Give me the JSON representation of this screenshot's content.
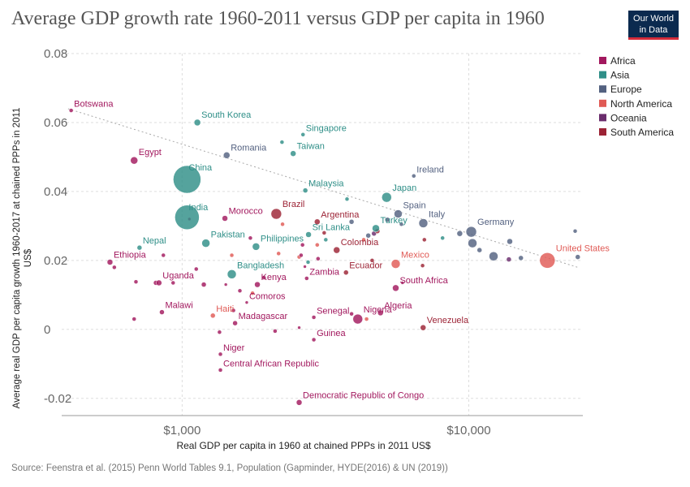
{
  "header": {
    "title": "Average GDP growth rate 1960-2011 versus GDP per capita in 1960",
    "logo_line1": "Our World",
    "logo_line2": "in Data"
  },
  "footer": {
    "source": "Source: Feenstra et al. (2015) Penn World Tables 9.1, Population (Gapminder, HYDE(2016) & UN (2019))"
  },
  "colors": {
    "Africa": "#a2185e",
    "Asia": "#2f8f88",
    "Europe": "#536180",
    "North America": "#e05a55",
    "Oceania": "#6a2d6c",
    "South America": "#9c2335"
  },
  "chart_data": {
    "type": "scatter",
    "title": "Average GDP growth rate 1960-2011 versus GDP per capita in 1960",
    "xlabel": "Real GDP per capita in 1960 at chained PPPs in 2011 US$",
    "ylabel": "Average real GDP per capita growth 1960-2017 at chained PPPs in 2011 US$",
    "x_scale": "log",
    "xlim": [
      380,
      25000
    ],
    "ylim": [
      -0.025,
      0.08
    ],
    "x_ticks": [
      {
        "value": 1000,
        "label": "$1,000"
      },
      {
        "value": 10000,
        "label": "$10,000"
      }
    ],
    "y_ticks": [
      {
        "value": -0.02,
        "label": "-0.02"
      },
      {
        "value": 0,
        "label": "0"
      },
      {
        "value": 0.02,
        "label": "0.02"
      },
      {
        "value": 0.04,
        "label": "0.04"
      },
      {
        "value": 0.06,
        "label": "0.06"
      },
      {
        "value": 0.08,
        "label": "0.08"
      }
    ],
    "grid": true,
    "legend_position": "right",
    "legend": [
      "Africa",
      "Asia",
      "Europe",
      "North America",
      "Oceania",
      "South America"
    ],
    "trendline": [
      {
        "x": 400,
        "y": 0.064
      },
      {
        "x": 24000,
        "y": 0.018
      }
    ],
    "points": [
      {
        "label": "Botswana",
        "region": "Africa",
        "x": 410,
        "y": 0.0635,
        "size": 2.5
      },
      {
        "label": "South Korea",
        "region": "Asia",
        "x": 1130,
        "y": 0.06,
        "size": 4
      },
      {
        "label": "Singapore",
        "region": "Asia",
        "x": 2640,
        "y": 0.0565,
        "size": 2.5
      },
      {
        "label": "Romania",
        "region": "Europe",
        "x": 1430,
        "y": 0.0505,
        "size": 4
      },
      {
        "label": "Taiwan",
        "region": "Asia",
        "x": 2440,
        "y": 0.051,
        "size": 3.5
      },
      {
        "label": "Egypt",
        "region": "Africa",
        "x": 680,
        "y": 0.049,
        "size": 4.5
      },
      {
        "label": "China",
        "region": "Asia",
        "x": 1040,
        "y": 0.0435,
        "size": 17
      },
      {
        "label": "Ireland",
        "region": "Europe",
        "x": 6430,
        "y": 0.0445,
        "size": 2.5
      },
      {
        "label": "Malaysia",
        "region": "Asia",
        "x": 2690,
        "y": 0.0403,
        "size": 3
      },
      {
        "label": "Japan",
        "region": "Asia",
        "x": 5170,
        "y": 0.0383,
        "size": 6
      },
      {
        "label": "India",
        "region": "Asia",
        "x": 1040,
        "y": 0.0325,
        "size": 15
      },
      {
        "label": "Morocco",
        "region": "Africa",
        "x": 1410,
        "y": 0.0322,
        "size": 3.5
      },
      {
        "label": "Brazil",
        "region": "South America",
        "x": 2130,
        "y": 0.0335,
        "size": 6.5
      },
      {
        "label": "Argentina",
        "region": "South America",
        "x": 2960,
        "y": 0.0312,
        "size": 3.5
      },
      {
        "label": "Spain",
        "region": "Europe",
        "x": 5670,
        "y": 0.0335,
        "size": 5
      },
      {
        "label": "Italy",
        "region": "Europe",
        "x": 6940,
        "y": 0.0308,
        "size": 5.5
      },
      {
        "label": "Turkey",
        "region": "Asia",
        "x": 4740,
        "y": 0.0293,
        "size": 4.5
      },
      {
        "label": "Germany",
        "region": "Europe",
        "x": 10200,
        "y": 0.0283,
        "size": 6.5
      },
      {
        "label": "Sri Lanka",
        "region": "Asia",
        "x": 2760,
        "y": 0.0275,
        "size": 3.5
      },
      {
        "label": "Pakistan",
        "region": "Asia",
        "x": 1210,
        "y": 0.025,
        "size": 5
      },
      {
        "label": "Philippines",
        "region": "Asia",
        "x": 1810,
        "y": 0.024,
        "size": 4.5
      },
      {
        "label": "Nepal",
        "region": "Asia",
        "x": 710,
        "y": 0.0237,
        "size": 3
      },
      {
        "label": "Colombia",
        "region": "South America",
        "x": 3460,
        "y": 0.023,
        "size": 4
      },
      {
        "label": "United States",
        "region": "North America",
        "x": 18800,
        "y": 0.02,
        "size": 9.5
      },
      {
        "label": "Ethiopia",
        "region": "Africa",
        "x": 560,
        "y": 0.0195,
        "size": 3.5
      },
      {
        "label": "Mexico",
        "region": "North America",
        "x": 5560,
        "y": 0.019,
        "size": 5.5
      },
      {
        "label": "Bangladesh",
        "region": "Asia",
        "x": 1490,
        "y": 0.016,
        "size": 5.5
      },
      {
        "label": "Ecuador",
        "region": "South America",
        "x": 3730,
        "y": 0.0165,
        "size": 3
      },
      {
        "label": "Zambia",
        "region": "Africa",
        "x": 2720,
        "y": 0.0148,
        "size": 2.5
      },
      {
        "label": "Uganda",
        "region": "Africa",
        "x": 830,
        "y": 0.0135,
        "size": 3.5
      },
      {
        "label": "Kenya",
        "region": "Africa",
        "x": 1830,
        "y": 0.013,
        "size": 3.5
      },
      {
        "label": "South Africa",
        "region": "Africa",
        "x": 5560,
        "y": 0.012,
        "size": 4
      },
      {
        "label": "Comoros",
        "region": "Africa",
        "x": 1680,
        "y": 0.0078,
        "size": 2
      },
      {
        "label": "Malawi",
        "region": "Africa",
        "x": 850,
        "y": 0.005,
        "size": 3
      },
      {
        "label": "Haiti",
        "region": "North America",
        "x": 1280,
        "y": 0.004,
        "size": 3
      },
      {
        "label": "Nigeria",
        "region": "Africa",
        "x": 4100,
        "y": 0.003,
        "size": 6
      },
      {
        "label": "Algeria",
        "region": "Africa",
        "x": 4920,
        "y": 0.0048,
        "size": 3.5
      },
      {
        "label": "Senegal",
        "region": "Africa",
        "x": 2880,
        "y": 0.0035,
        "size": 2.5
      },
      {
        "label": "Madagascar",
        "region": "Africa",
        "x": 1530,
        "y": 0.0018,
        "size": 3
      },
      {
        "label": "Venezuela",
        "region": "South America",
        "x": 6930,
        "y": 0.0005,
        "size": 3.5
      },
      {
        "label": "Guinea",
        "region": "Africa",
        "x": 2880,
        "y": -0.003,
        "size": 2.5
      },
      {
        "label": "Niger",
        "region": "Africa",
        "x": 1360,
        "y": -0.0072,
        "size": 2.5
      },
      {
        "label": "Central African Republic",
        "region": "Africa",
        "x": 1360,
        "y": -0.0118,
        "size": 2.5
      },
      {
        "label": "Democratic Republic of Congo",
        "region": "Africa",
        "x": 2560,
        "y": -0.0212,
        "size": 3.5
      }
    ],
    "unlabeled_points": [
      {
        "region": "Europe",
        "x": 23500,
        "y": 0.0285,
        "size": 2.5
      },
      {
        "region": "Europe",
        "x": 24000,
        "y": 0.021,
        "size": 3
      },
      {
        "region": "Europe",
        "x": 15200,
        "y": 0.0207,
        "size": 3
      },
      {
        "region": "Europe",
        "x": 13900,
        "y": 0.0255,
        "size": 3.5
      },
      {
        "region": "Europe",
        "x": 12200,
        "y": 0.0212,
        "size": 5.5
      },
      {
        "region": "Europe",
        "x": 10300,
        "y": 0.025,
        "size": 5.5
      },
      {
        "region": "Europe",
        "x": 9300,
        "y": 0.0278,
        "size": 3.5
      },
      {
        "region": "Europe",
        "x": 10900,
        "y": 0.023,
        "size": 3
      },
      {
        "region": "Oceania",
        "x": 13800,
        "y": 0.0203,
        "size": 3
      },
      {
        "region": "Asia",
        "x": 8100,
        "y": 0.0265,
        "size": 2.5
      },
      {
        "region": "South America",
        "x": 7000,
        "y": 0.026,
        "size": 2.5
      },
      {
        "region": "Europe",
        "x": 4460,
        "y": 0.0272,
        "size": 3
      },
      {
        "region": "Europe",
        "x": 3900,
        "y": 0.0312,
        "size": 3
      },
      {
        "region": "Asia",
        "x": 3760,
        "y": 0.0378,
        "size": 2.5
      },
      {
        "region": "Europe",
        "x": 5200,
        "y": 0.0318,
        "size": 3
      },
      {
        "region": "Europe",
        "x": 5820,
        "y": 0.0305,
        "size": 2.5
      },
      {
        "region": "Oceania",
        "x": 4670,
        "y": 0.0278,
        "size": 3
      },
      {
        "region": "Asia",
        "x": 2230,
        "y": 0.0543,
        "size": 2.5
      },
      {
        "region": "Asia",
        "x": 3170,
        "y": 0.026,
        "size": 2.5
      },
      {
        "region": "Asia",
        "x": 2750,
        "y": 0.0195,
        "size": 2.5
      },
      {
        "region": "North America",
        "x": 2240,
        "y": 0.0305,
        "size": 2.5
      },
      {
        "region": "North America",
        "x": 2560,
        "y": 0.021,
        "size": 2.5
      },
      {
        "region": "North America",
        "x": 2960,
        "y": 0.0245,
        "size": 2.5
      },
      {
        "region": "North America",
        "x": 4300,
        "y": 0.026,
        "size": 2.5
      },
      {
        "region": "North America",
        "x": 1490,
        "y": 0.0215,
        "size": 2.5
      },
      {
        "region": "North America",
        "x": 1760,
        "y": 0.0105,
        "size": 2.5
      },
      {
        "region": "North America",
        "x": 2170,
        "y": 0.022,
        "size": 2.5
      },
      {
        "region": "North America",
        "x": 4400,
        "y": 0.003,
        "size": 2.5
      },
      {
        "region": "Africa",
        "x": 2630,
        "y": 0.0245,
        "size": 2.5
      },
      {
        "region": "Africa",
        "x": 2600,
        "y": 0.0215,
        "size": 2.5
      },
      {
        "region": "Africa",
        "x": 1730,
        "y": 0.0265,
        "size": 2.5
      },
      {
        "region": "Africa",
        "x": 2980,
        "y": 0.0205,
        "size": 2.5
      },
      {
        "region": "Africa",
        "x": 1930,
        "y": 0.015,
        "size": 2.5
      },
      {
        "region": "Africa",
        "x": 1590,
        "y": 0.0112,
        "size": 2.5
      },
      {
        "region": "Africa",
        "x": 1510,
        "y": 0.0055,
        "size": 2.5
      },
      {
        "region": "Africa",
        "x": 1120,
        "y": 0.0175,
        "size": 2.5
      },
      {
        "region": "Africa",
        "x": 1060,
        "y": 0.032,
        "size": 2
      },
      {
        "region": "Africa",
        "x": 930,
        "y": 0.0135,
        "size": 2.5
      },
      {
        "region": "Africa",
        "x": 860,
        "y": 0.0215,
        "size": 2.5
      },
      {
        "region": "Africa",
        "x": 810,
        "y": 0.0135,
        "size": 3
      },
      {
        "region": "Africa",
        "x": 690,
        "y": 0.0138,
        "size": 2.5
      },
      {
        "region": "Africa",
        "x": 680,
        "y": 0.003,
        "size": 2.5
      },
      {
        "region": "Africa",
        "x": 580,
        "y": 0.018,
        "size": 2.5
      },
      {
        "region": "Africa",
        "x": 1190,
        "y": 0.013,
        "size": 3
      },
      {
        "region": "Africa",
        "x": 2110,
        "y": -0.0005,
        "size": 2.5
      },
      {
        "region": "Africa",
        "x": 2560,
        "y": 0.0005,
        "size": 2
      },
      {
        "region": "Africa",
        "x": 1350,
        "y": -0.0008,
        "size": 2.5
      },
      {
        "region": "Africa",
        "x": 1420,
        "y": 0.013,
        "size": 2
      },
      {
        "region": "Africa",
        "x": 2680,
        "y": 0.0182,
        "size": 2
      },
      {
        "region": "Africa",
        "x": 5870,
        "y": 0.0135,
        "size": 2
      },
      {
        "region": "Africa",
        "x": 3900,
        "y": 0.0045,
        "size": 2.5
      },
      {
        "region": "South America",
        "x": 4800,
        "y": 0.0285,
        "size": 3
      },
      {
        "region": "South America",
        "x": 3130,
        "y": 0.028,
        "size": 2.5
      },
      {
        "region": "South America",
        "x": 4600,
        "y": 0.02,
        "size": 2.5
      },
      {
        "region": "South America",
        "x": 6900,
        "y": 0.0185,
        "size": 2.5
      }
    ]
  }
}
